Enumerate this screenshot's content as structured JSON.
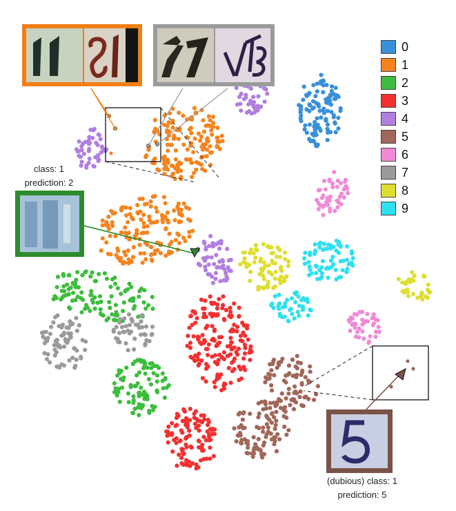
{
  "chart_data": {
    "type": "scatter",
    "title": "",
    "xlabel": "",
    "ylabel": "",
    "grid": false,
    "legend_position": "top-right",
    "legend": [
      {
        "label": "0",
        "color": "#3a8fd9"
      },
      {
        "label": "1",
        "color": "#f5841f"
      },
      {
        "label": "2",
        "color": "#3dbd3d"
      },
      {
        "label": "3",
        "color": "#f23030"
      },
      {
        "label": "4",
        "color": "#b07fe0"
      },
      {
        "label": "5",
        "color": "#a0675a"
      },
      {
        "label": "6",
        "color": "#f08ad6"
      },
      {
        "label": "7",
        "color": "#9a9a9a"
      },
      {
        "label": "8",
        "color": "#dede30"
      },
      {
        "label": "9",
        "color": "#2fe0f0"
      }
    ],
    "clusters": [
      {
        "class": "0",
        "x": 70,
        "y": 22
      },
      {
        "class": "1",
        "x": 40,
        "y": 28
      },
      {
        "class": "1",
        "x": 32,
        "y": 45
      },
      {
        "class": "2",
        "x": 22,
        "y": 58
      },
      {
        "class": "2",
        "x": 31,
        "y": 76
      },
      {
        "class": "3",
        "x": 48,
        "y": 67
      },
      {
        "class": "3",
        "x": 42,
        "y": 86
      },
      {
        "class": "4",
        "x": 20,
        "y": 29
      },
      {
        "class": "4",
        "x": 55,
        "y": 19
      },
      {
        "class": "4",
        "x": 47,
        "y": 51
      },
      {
        "class": "5",
        "x": 64,
        "y": 75
      },
      {
        "class": "5",
        "x": 57,
        "y": 84
      },
      {
        "class": "6",
        "x": 73,
        "y": 38
      },
      {
        "class": "6",
        "x": 80,
        "y": 64
      },
      {
        "class": "7",
        "x": 14,
        "y": 67
      },
      {
        "class": "7",
        "x": 29,
        "y": 65
      },
      {
        "class": "8",
        "x": 58,
        "y": 52
      },
      {
        "class": "8",
        "x": 91,
        "y": 56
      },
      {
        "class": "9",
        "x": 72,
        "y": 51
      },
      {
        "class": "9",
        "x": 64,
        "y": 60
      }
    ]
  },
  "annotations": {
    "misclassified_left": {
      "class_line": "class: 1",
      "prediction_line": "prediction: 2"
    },
    "dubious_right": {
      "class_line": "(dubious) class: 1",
      "prediction_line": "prediction: 5"
    }
  },
  "thumbnail_frames": {
    "orange": "#f07f17",
    "gray": "#9b9b9b",
    "green": "#2e8b2e",
    "brown": "#7a5248"
  }
}
